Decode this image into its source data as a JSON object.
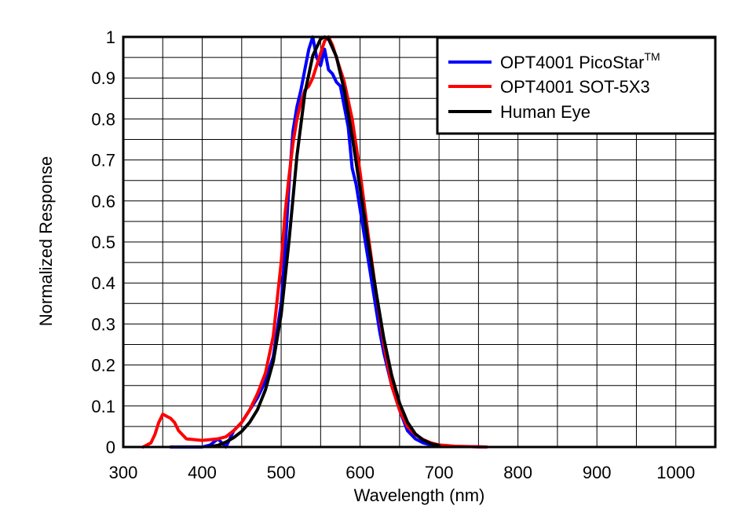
{
  "chart_data": {
    "type": "line",
    "xlabel": "Wavelength (nm)",
    "ylabel": "Normalized Response",
    "xlim": [
      300,
      1050
    ],
    "ylim": [
      0,
      1
    ],
    "xticks": [
      300,
      400,
      500,
      600,
      700,
      800,
      900,
      1000
    ],
    "yticks": [
      0,
      0.1,
      0.2,
      0.3,
      0.4,
      0.5,
      0.6,
      0.7,
      0.8,
      0.9,
      1
    ],
    "grid": true,
    "legend_position": "top-right",
    "series": [
      {
        "name": "OPT4001 PicoStar",
        "name_superscript": "TM",
        "color": "#0000ff",
        "x": [
          360,
          370,
          380,
          390,
          400,
          410,
          420,
          430,
          440,
          450,
          460,
          470,
          480,
          490,
          500,
          505,
          510,
          515,
          520,
          525,
          530,
          535,
          540,
          545,
          550,
          555,
          560,
          565,
          570,
          575,
          580,
          585,
          590,
          595,
          600,
          605,
          610,
          615,
          620,
          625,
          630,
          640,
          650,
          660,
          670,
          680,
          690,
          700,
          720,
          740,
          760
        ],
        "y": [
          0,
          0,
          0,
          0,
          0,
          0.005,
          0.02,
          0,
          0.04,
          0.06,
          0.09,
          0.12,
          0.16,
          0.22,
          0.35,
          0.48,
          0.64,
          0.77,
          0.83,
          0.87,
          0.92,
          0.97,
          1.0,
          0.95,
          0.93,
          0.97,
          0.92,
          0.91,
          0.89,
          0.88,
          0.83,
          0.78,
          0.68,
          0.64,
          0.58,
          0.52,
          0.46,
          0.4,
          0.34,
          0.28,
          0.23,
          0.15,
          0.09,
          0.04,
          0.02,
          0.01,
          0.005,
          0.002,
          0.001,
          0.001,
          0
        ]
      },
      {
        "name": "OPT4001 SOT-5X3",
        "color": "#ff0000",
        "x": [
          325,
          335,
          340,
          345,
          350,
          355,
          360,
          365,
          370,
          380,
          390,
          400,
          410,
          420,
          430,
          440,
          450,
          460,
          470,
          480,
          490,
          500,
          505,
          510,
          515,
          520,
          525,
          530,
          535,
          540,
          545,
          550,
          555,
          560,
          565,
          570,
          580,
          590,
          600,
          610,
          620,
          630,
          640,
          650,
          660,
          670,
          680,
          690,
          700,
          720,
          740,
          760
        ],
        "y": [
          0,
          0.01,
          0.03,
          0.06,
          0.08,
          0.075,
          0.07,
          0.06,
          0.04,
          0.02,
          0.018,
          0.016,
          0.018,
          0.02,
          0.025,
          0.04,
          0.06,
          0.09,
          0.13,
          0.18,
          0.27,
          0.45,
          0.57,
          0.66,
          0.74,
          0.8,
          0.84,
          0.87,
          0.88,
          0.9,
          0.93,
          0.96,
          0.99,
          1.0,
          0.98,
          0.95,
          0.89,
          0.8,
          0.67,
          0.52,
          0.38,
          0.25,
          0.15,
          0.09,
          0.05,
          0.03,
          0.018,
          0.01,
          0.005,
          0.002,
          0.001,
          0
        ]
      },
      {
        "name": "Human Eye",
        "color": "#000000",
        "x": [
          410,
          420,
          430,
          440,
          450,
          460,
          470,
          480,
          490,
          500,
          510,
          520,
          530,
          540,
          550,
          555,
          560,
          570,
          580,
          590,
          600,
          610,
          620,
          630,
          640,
          650,
          660,
          670,
          680,
          690,
          700
        ],
        "y": [
          0.001,
          0.004,
          0.012,
          0.023,
          0.038,
          0.06,
          0.091,
          0.139,
          0.208,
          0.323,
          0.503,
          0.71,
          0.862,
          0.954,
          0.995,
          1.0,
          0.995,
          0.952,
          0.87,
          0.757,
          0.631,
          0.503,
          0.381,
          0.265,
          0.175,
          0.107,
          0.061,
          0.032,
          0.017,
          0.008,
          0.004
        ]
      }
    ]
  }
}
